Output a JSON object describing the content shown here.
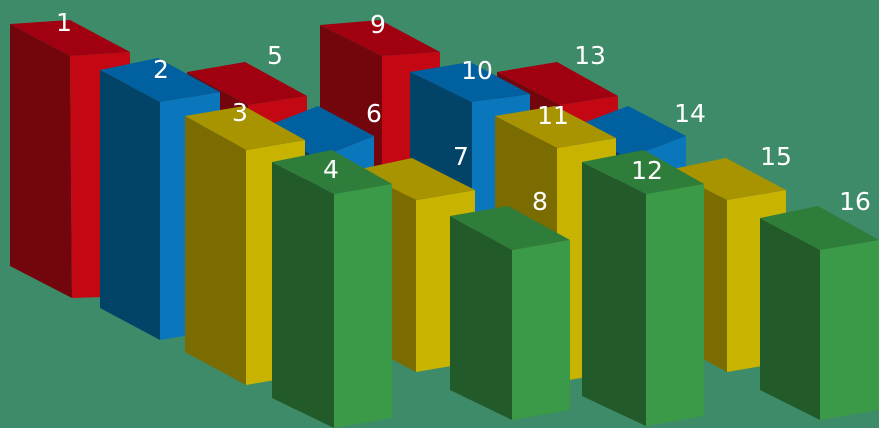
{
  "background": "#3d8b68",
  "palette": {
    "red": {
      "top": "#a0000f",
      "left": "#73050d",
      "right": "#c30813"
    },
    "blue": {
      "top": "#0060a0",
      "left": "#024468",
      "right": "#0a77bc"
    },
    "yellow": {
      "top": "#a79400",
      "left": "#7a6c00",
      "right": "#c8b300"
    },
    "green": {
      "top": "#2f7d3a",
      "left": "#235a29",
      "right": "#3a9a48"
    }
  },
  "boxes": [
    {
      "label": "1",
      "color": "red"
    },
    {
      "label": "2",
      "color": "blue"
    },
    {
      "label": "3",
      "color": "yellow"
    },
    {
      "label": "4",
      "color": "green"
    },
    {
      "label": "5",
      "color": "red"
    },
    {
      "label": "6",
      "color": "blue"
    },
    {
      "label": "7",
      "color": "yellow"
    },
    {
      "label": "8",
      "color": "green"
    },
    {
      "label": "9",
      "color": "red"
    },
    {
      "label": "10",
      "color": "blue"
    },
    {
      "label": "11",
      "color": "yellow"
    },
    {
      "label": "12",
      "color": "green"
    },
    {
      "label": "13",
      "color": "red"
    },
    {
      "label": "14",
      "color": "blue"
    },
    {
      "label": "15",
      "color": "yellow"
    },
    {
      "label": "16",
      "color": "green"
    }
  ]
}
